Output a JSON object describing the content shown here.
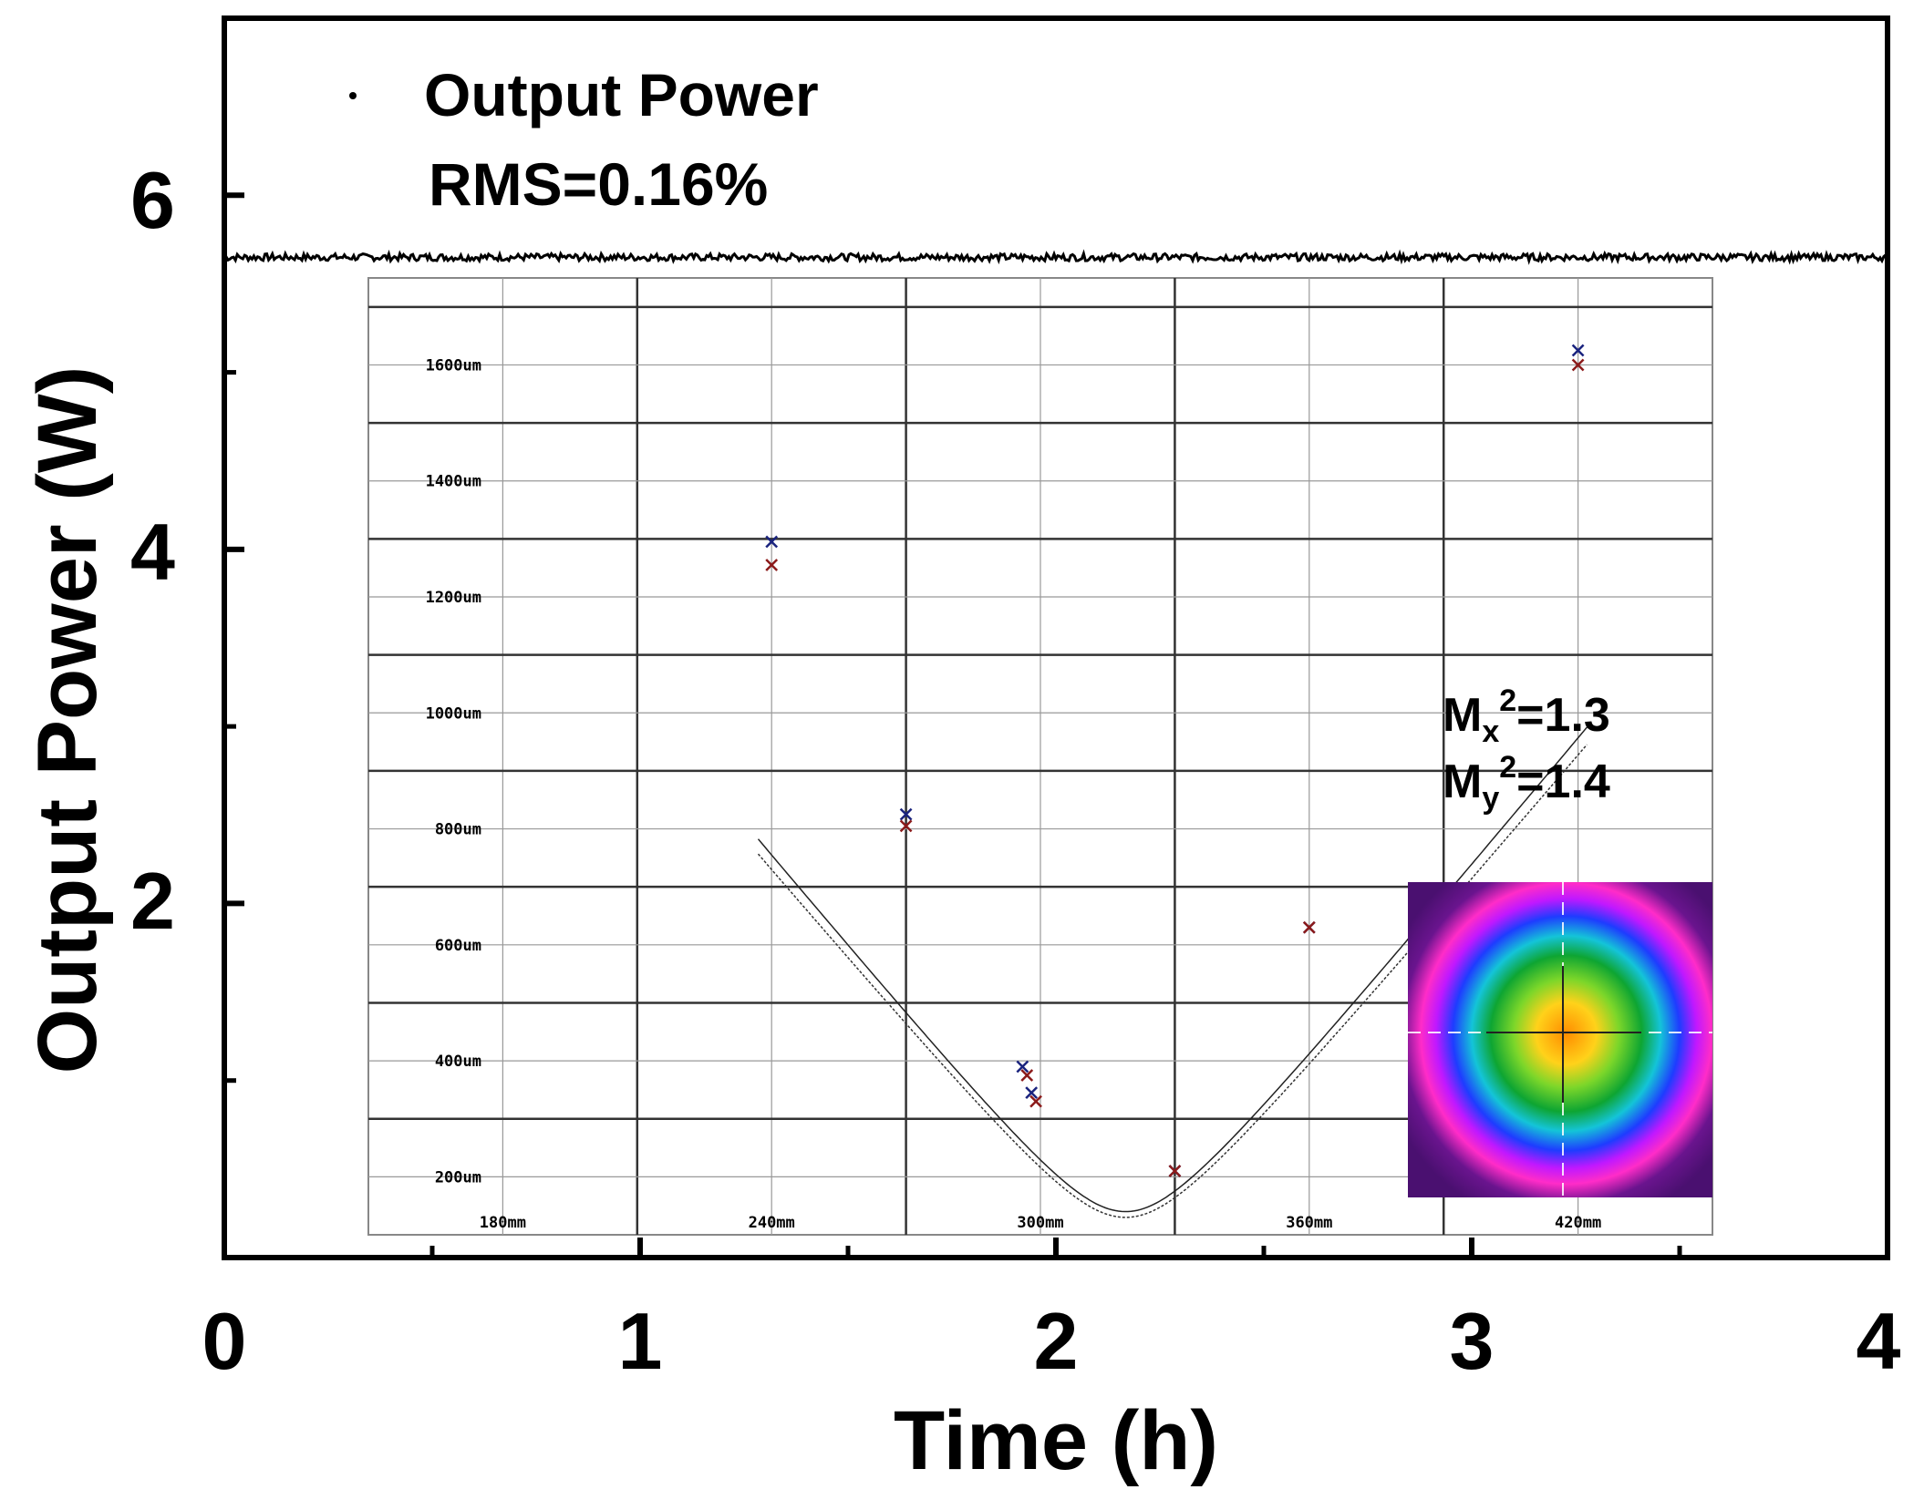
{
  "chart_data": {
    "type": "scatter",
    "xlabel": "Time (h)",
    "ylabel": "Output Power (W)",
    "xlim": [
      0,
      4
    ],
    "ylim": [
      0,
      7
    ],
    "x_ticks": [
      "0",
      "1",
      "2",
      "3",
      "4"
    ],
    "y_ticks": [
      "2",
      "4",
      "6"
    ],
    "legend": {
      "label": "Output Power",
      "placement": "top-left"
    },
    "annotation": "RMS=0.16%",
    "series": [
      {
        "name": "Output Power",
        "mean": 5.65,
        "noise": 0.02,
        "x_range": [
          0,
          4
        ],
        "color": "#000000"
      }
    ],
    "inset": {
      "type": "line",
      "x_unit": "mm",
      "y_unit": "um",
      "xlim": [
        150,
        450
      ],
      "ylim": [
        100,
        1750
      ],
      "x_ticks": [
        "180mm",
        "240mm",
        "300mm",
        "360mm",
        "420mm"
      ],
      "y_ticks": [
        "200um",
        "400um",
        "600um",
        "800um",
        "1000um",
        "1200um",
        "1400um",
        "1600um"
      ],
      "m2_x_label": {
        "base": "M",
        "sub": "x",
        "sup": "2",
        "value": "=1.3"
      },
      "m2_y_label": {
        "base": "M",
        "sub": "y",
        "sup": "2",
        "value": "=1.4"
      },
      "points_x": [
        {
          "x": 240,
          "y": 1255
        },
        {
          "x": 270,
          "y": 805
        },
        {
          "x": 297,
          "y": 375
        },
        {
          "x": 299,
          "y": 330
        },
        {
          "x": 330,
          "y": 210
        },
        {
          "x": 360,
          "y": 630
        },
        {
          "x": 420,
          "y": 1600
        }
      ],
      "points_y": [
        {
          "x": 240,
          "y": 1295
        },
        {
          "x": 270,
          "y": 825
        },
        {
          "x": 296,
          "y": 390
        },
        {
          "x": 298,
          "y": 345
        },
        {
          "x": 330,
          "y": 210
        },
        {
          "x": 360,
          "y": 630
        },
        {
          "x": 420,
          "y": 1625
        }
      ],
      "fit_x": {
        "waist_position": 319,
        "waist_radius": 130,
        "rayleigh": 14.3
      },
      "fit_y": {
        "waist_position": 319,
        "waist_radius": 130,
        "rayleigh": 14.0
      }
    }
  },
  "colors": {
    "axis": "#000000",
    "series": "#000000",
    "inset_grid": "#555555",
    "marker_x": "#8b1a1a",
    "marker_y": "#1a237e"
  }
}
